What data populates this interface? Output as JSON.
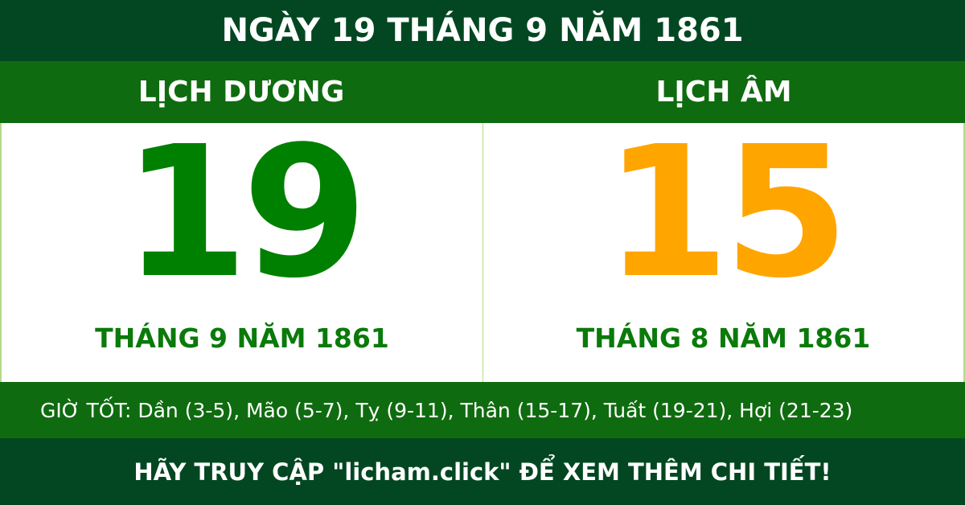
{
  "title": "NGÀY 19 THÁNG 9 NĂM 1861",
  "solar": {
    "label": "LỊCH DƯƠNG",
    "day": "19",
    "month_year": "THÁNG 9 NĂM 1861"
  },
  "lunar": {
    "label": "LỊCH ÂM",
    "day": "15",
    "month_year": "THÁNG 8 NĂM 1861"
  },
  "good_hours": "GIỜ TỐT: Dần (3-5), Mão (5-7), Tỵ (9-11), Thân (15-17), Tuất (19-21), Hợi (21-23)",
  "footer": "HÃY TRUY CẬP \"licham.click\" ĐỂ XEM THÊM CHI TIẾT!",
  "colors": {
    "dark_green": "#034722",
    "green": "#0f6b0f",
    "solar_day": "#008000",
    "lunar_day": "#ffa500"
  }
}
